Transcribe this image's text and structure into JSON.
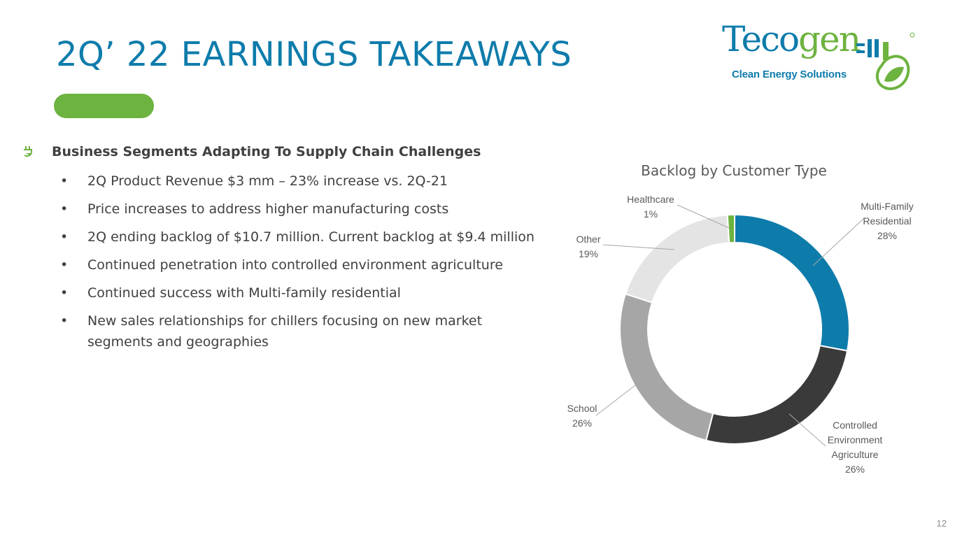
{
  "slide": {
    "title": "2Q’ 22 EARNINGS TAKEAWAYS",
    "page_number": "12",
    "accent_color": "#6db33f",
    "title_color": "#0e7cab"
  },
  "logo": {
    "name_part1": "Teco",
    "name_part2": "gen",
    "tagline": "Clean Energy Solutions"
  },
  "content": {
    "heading_icon": "plug-leaf-icon",
    "heading": "Business Segments Adapting To Supply Chain Challenges",
    "bullets": [
      "2Q Product Revenue $3 mm – 23% increase vs. 2Q-21",
      "Price increases to address higher manufacturing costs",
      "2Q ending backlog of $10.7 million. Current backlog at $9.4 million",
      "Continued penetration into controlled environment agriculture",
      "Continued success with Multi-family residential",
      "New sales relationships for chillers focusing on new market segments and geographies"
    ]
  },
  "chart_data": {
    "type": "pie",
    "variant": "donut",
    "title": "Backlog by Customer Type",
    "slices": [
      {
        "name": "Multi-Family Residential",
        "value": 28,
        "label_lines": [
          "Multi-Family",
          "Residential",
          "28%"
        ],
        "color": "#0e7cab"
      },
      {
        "name": "Controlled Environment Agriculture",
        "value": 26,
        "label_lines": [
          "Controlled",
          "Environment",
          "Agriculture",
          "26%"
        ],
        "color": "#3a3a3a"
      },
      {
        "name": "School",
        "value": 26,
        "label_lines": [
          "School",
          "26%"
        ],
        "color": "#a6a6a6"
      },
      {
        "name": "Other",
        "value": 19,
        "label_lines": [
          "Other",
          "19%"
        ],
        "color": "#e4e4e4"
      },
      {
        "name": "Healthcare",
        "value": 1,
        "label_lines": [
          "Healthcare",
          "1%"
        ],
        "color": "#6db33f"
      }
    ]
  }
}
